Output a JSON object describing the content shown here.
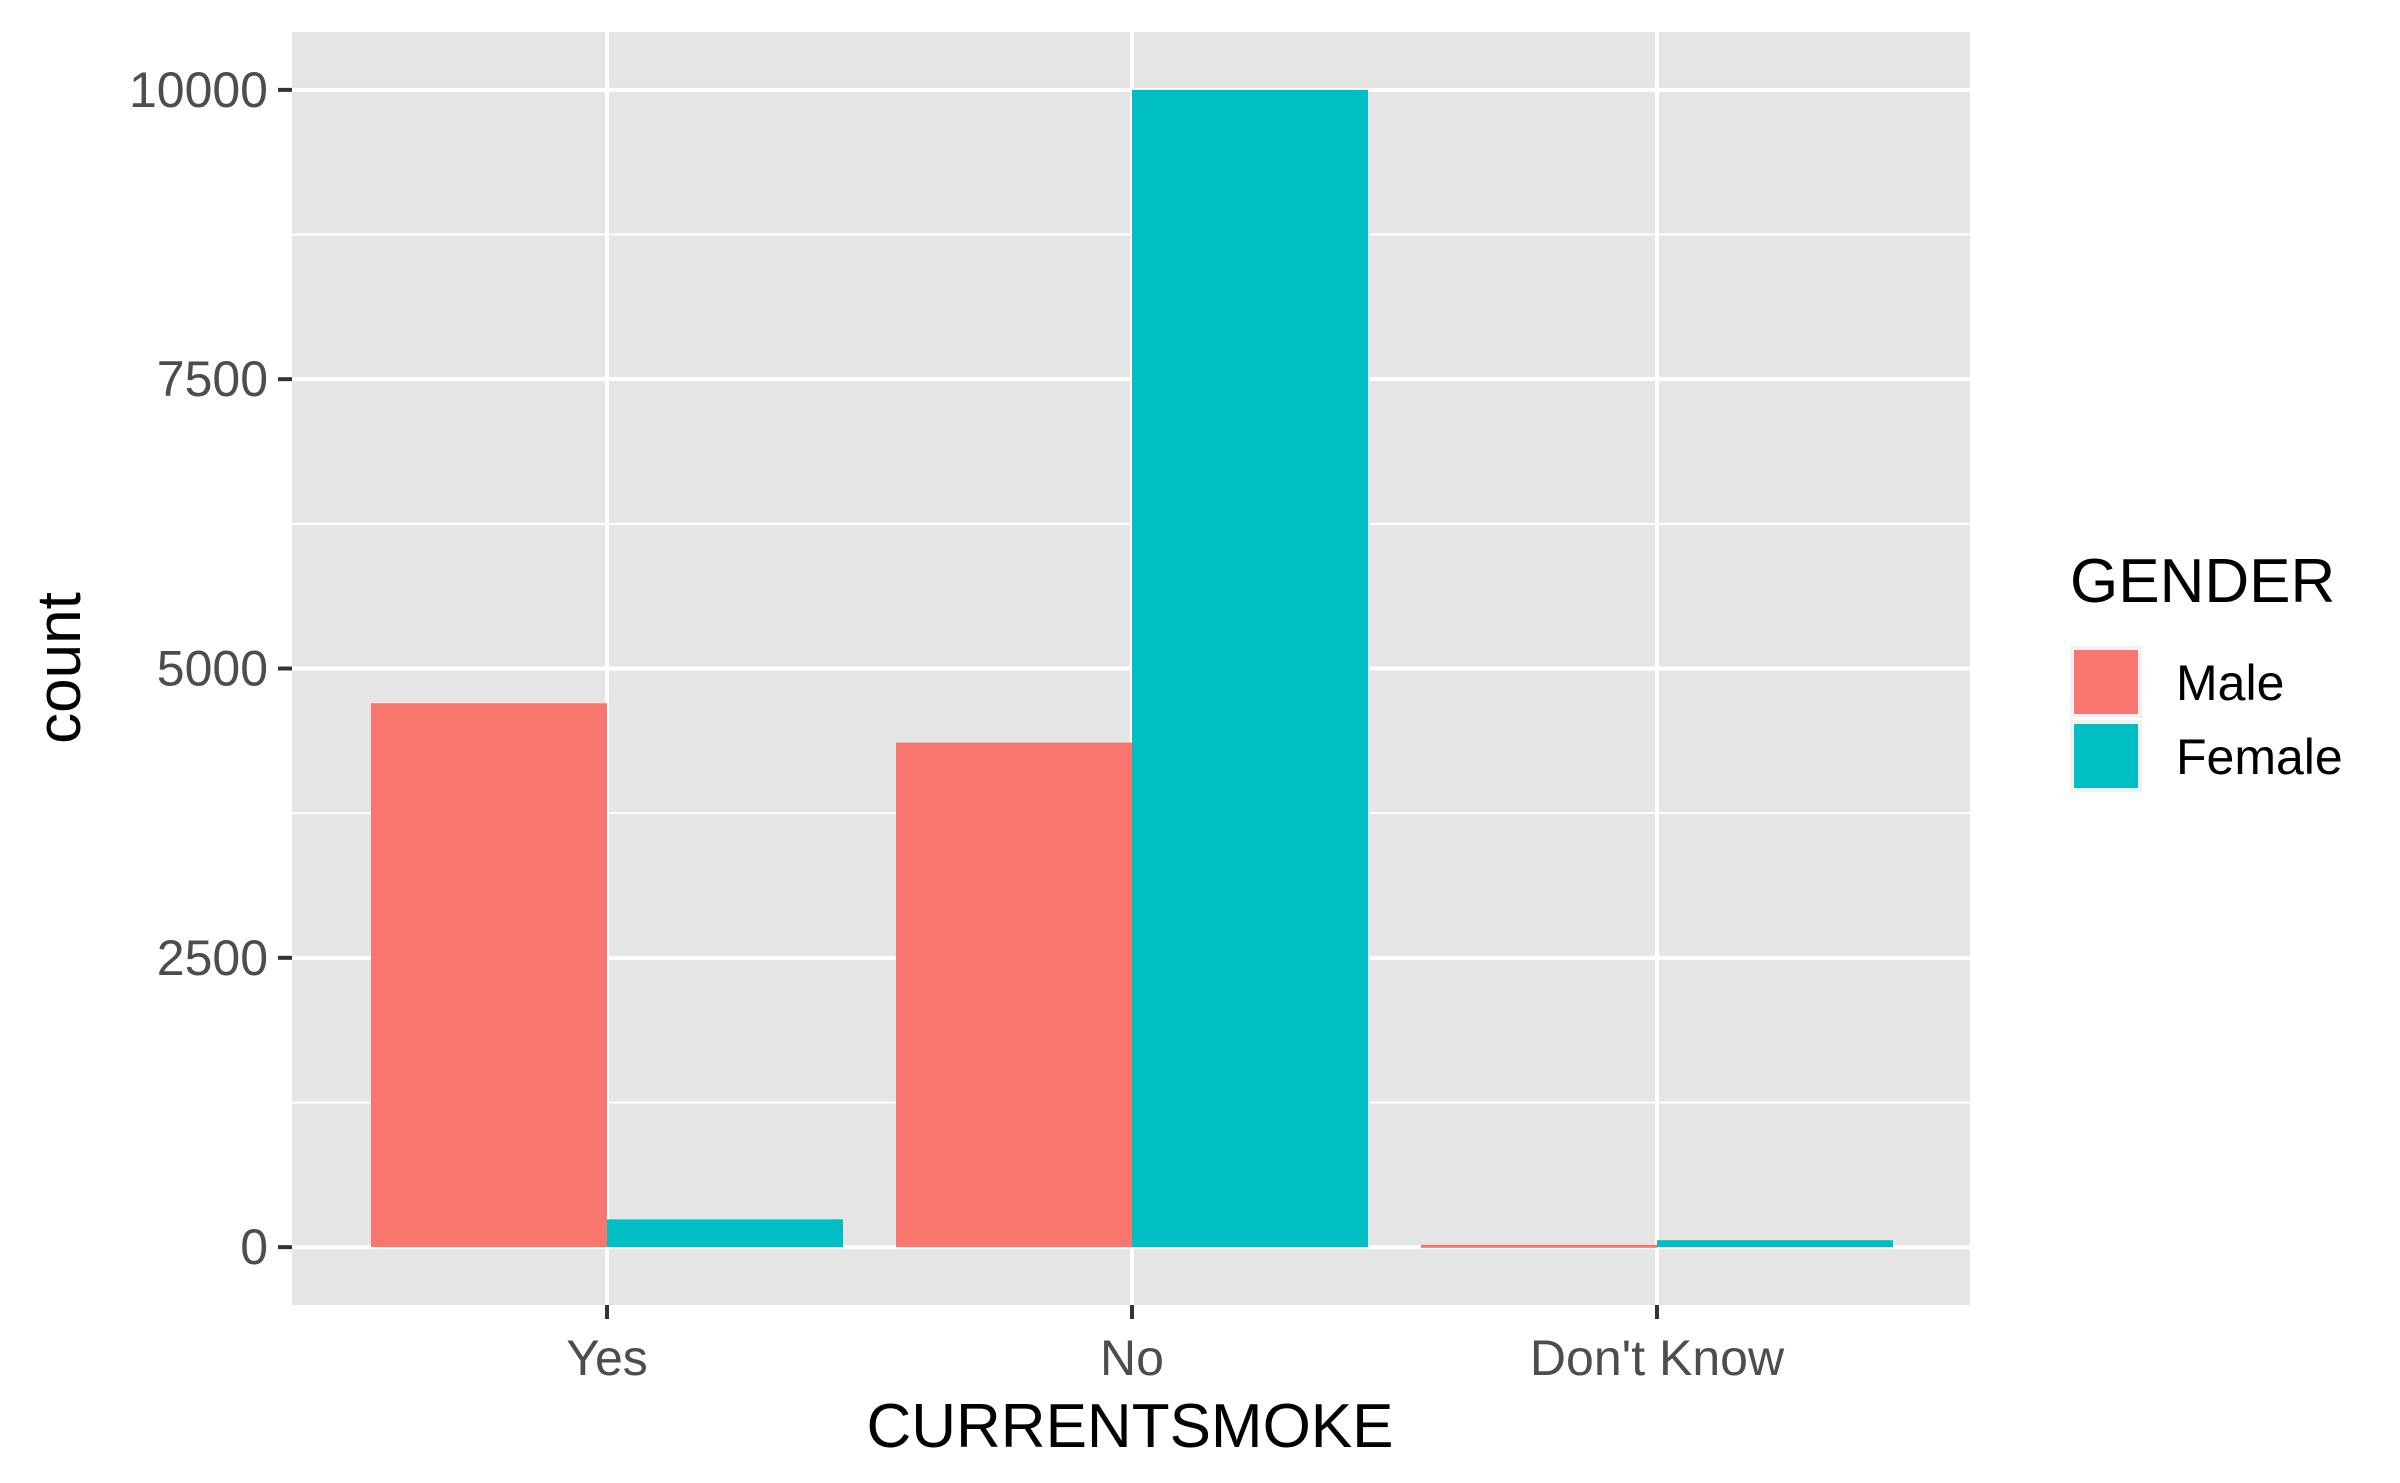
{
  "chart_data": {
    "type": "bar",
    "categories": [
      "Yes",
      "No",
      "Don't Know"
    ],
    "series": [
      {
        "name": "Male",
        "values": [
          4700,
          4360,
          20
        ],
        "color": "#F8766D"
      },
      {
        "name": "Female",
        "values": [
          240,
          10000,
          60
        ],
        "color": "#00BFC4"
      }
    ],
    "xlabel": "CURRENTSMOKE",
    "ylabel": "count",
    "ylim": [
      -500,
      10500
    ],
    "yticks": [
      0,
      2500,
      5000,
      7500,
      10000
    ],
    "ytick_labels": [
      "0",
      "2500",
      "5000",
      "7500",
      "10000"
    ],
    "grid": true,
    "legend": {
      "title": "GENDER",
      "placement": "right"
    },
    "panel_color": "#E5E5E5",
    "grid_color": "#FFFFFF"
  }
}
